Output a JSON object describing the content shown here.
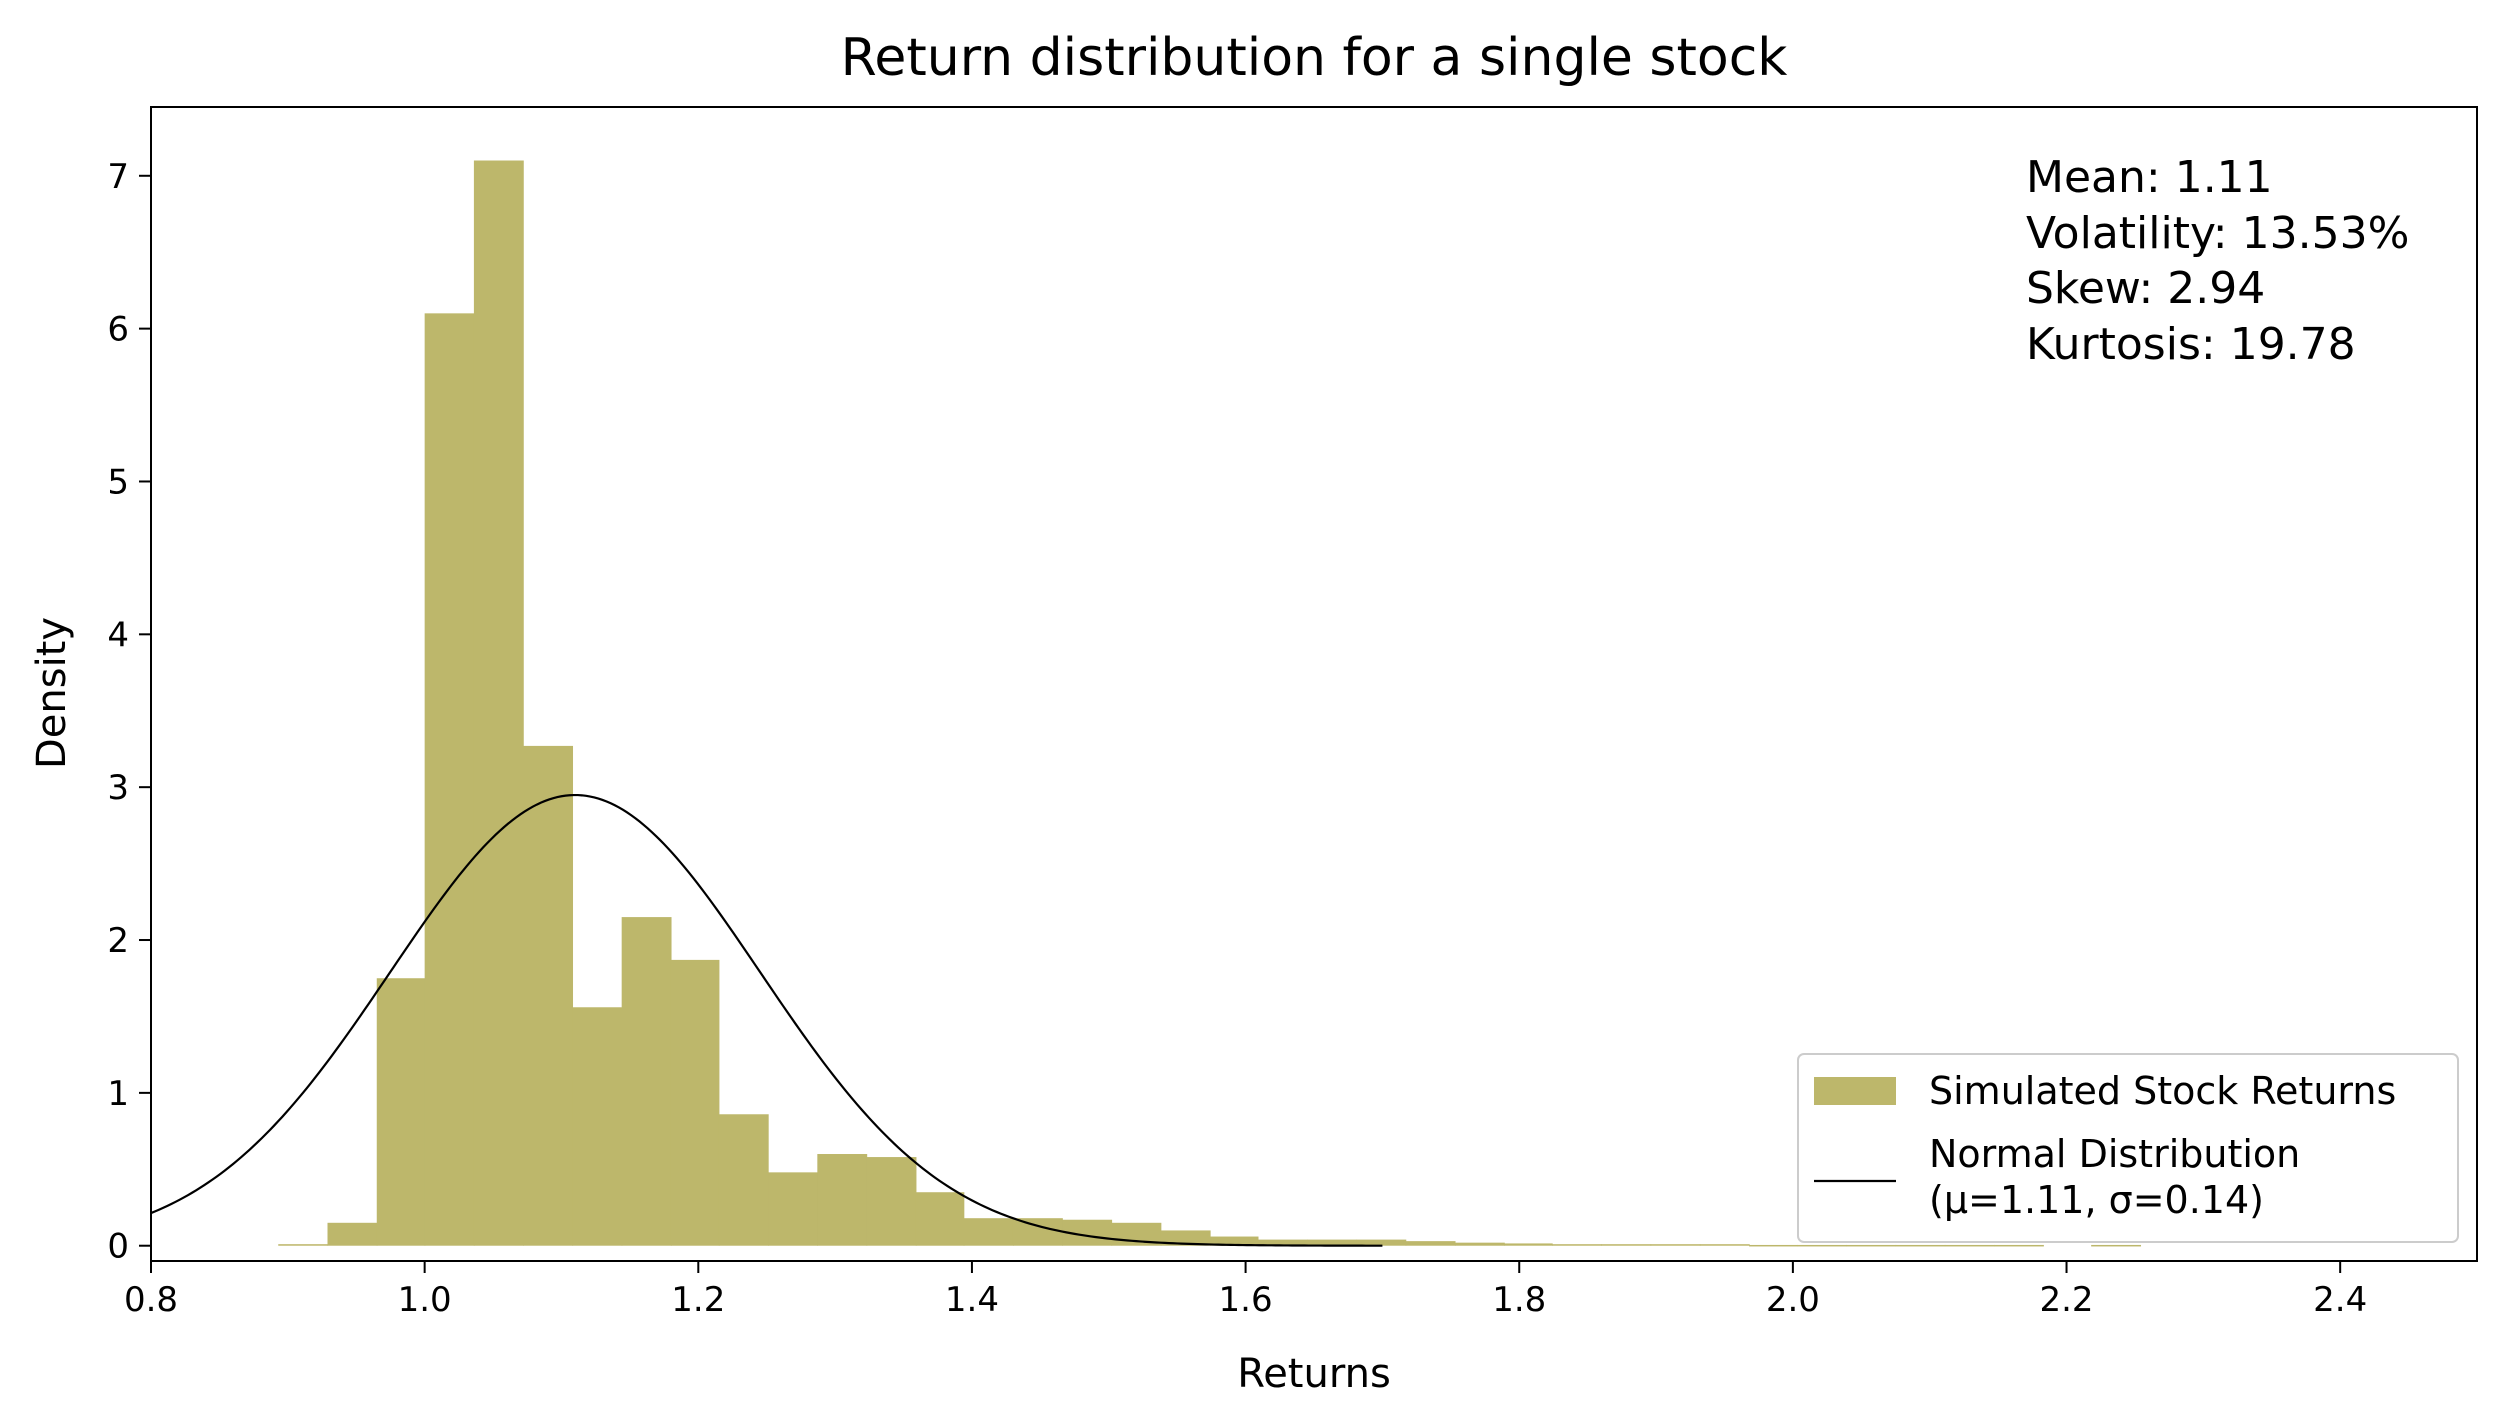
{
  "chart_data": {
    "type": "bar",
    "title": "Return distribution for a single stock",
    "xlabel": "Returns",
    "ylabel": "Density",
    "xlim": [
      0.8,
      2.5
    ],
    "ylim": [
      -0.1,
      7.45
    ],
    "xticks": [
      "0.8",
      "1.0",
      "1.2",
      "1.4",
      "1.6",
      "1.8",
      "2.0",
      "2.2",
      "2.4"
    ],
    "xtick_values": [
      0.8,
      1.0,
      1.2,
      1.4,
      1.6,
      1.8,
      2.0,
      2.2,
      2.4
    ],
    "yticks": [
      "0",
      "1",
      "2",
      "3",
      "4",
      "5",
      "6",
      "7"
    ],
    "ytick_values": [
      0,
      1,
      2,
      3,
      4,
      5,
      6,
      7
    ],
    "grid": false,
    "legend_position": "bottom-right",
    "stats_lines": [
      "Mean: 1.11",
      "Volatility: 13.53%",
      "Skew: 2.94",
      "Kurtosis: 19.78"
    ],
    "histogram": {
      "name": "Simulated Stock Returns",
      "color": "#bdb76b",
      "bins": [
        {
          "x0": 0.893,
          "x1": 0.929,
          "density": 0.01
        },
        {
          "x0": 0.929,
          "x1": 0.965,
          "density": 0.15
        },
        {
          "x0": 0.965,
          "x1": 1.0,
          "density": 1.75
        },
        {
          "x0": 1.0,
          "x1": 1.036,
          "density": 6.1
        },
        {
          "x0": 1.036,
          "x1": 1.072,
          "density": 7.1
        },
        {
          "x0": 1.072,
          "x1": 1.108,
          "density": 3.27
        },
        {
          "x0": 1.108,
          "x1": 1.144,
          "density": 1.56
        },
        {
          "x0": 1.144,
          "x1": 1.18,
          "density": 2.15
        },
        {
          "x0": 1.18,
          "x1": 1.215,
          "density": 1.87
        },
        {
          "x0": 1.215,
          "x1": 1.251,
          "density": 0.86
        },
        {
          "x0": 1.251,
          "x1": 1.287,
          "density": 0.48
        },
        {
          "x0": 1.287,
          "x1": 1.323,
          "density": 0.6
        },
        {
          "x0": 1.323,
          "x1": 1.359,
          "density": 0.58
        },
        {
          "x0": 1.359,
          "x1": 1.394,
          "density": 0.35
        },
        {
          "x0": 1.394,
          "x1": 1.43,
          "density": 0.18
        },
        {
          "x0": 1.43,
          "x1": 1.466,
          "density": 0.18
        },
        {
          "x0": 1.466,
          "x1": 1.502,
          "density": 0.17
        },
        {
          "x0": 1.502,
          "x1": 1.538,
          "density": 0.15
        },
        {
          "x0": 1.538,
          "x1": 1.574,
          "density": 0.1
        },
        {
          "x0": 1.574,
          "x1": 1.609,
          "density": 0.06
        },
        {
          "x0": 1.609,
          "x1": 1.645,
          "density": 0.04
        },
        {
          "x0": 1.645,
          "x1": 1.681,
          "density": 0.04
        },
        {
          "x0": 1.681,
          "x1": 1.717,
          "density": 0.04
        },
        {
          "x0": 1.717,
          "x1": 1.753,
          "density": 0.03
        },
        {
          "x0": 1.753,
          "x1": 1.789,
          "density": 0.02
        },
        {
          "x0": 1.789,
          "x1": 1.824,
          "density": 0.015
        },
        {
          "x0": 1.824,
          "x1": 1.86,
          "density": 0.01
        },
        {
          "x0": 1.86,
          "x1": 1.896,
          "density": 0.01
        },
        {
          "x0": 1.896,
          "x1": 1.932,
          "density": 0.01
        },
        {
          "x0": 1.932,
          "x1": 1.968,
          "density": 0.01
        },
        {
          "x0": 1.968,
          "x1": 2.003,
          "density": 0.005
        },
        {
          "x0": 2.003,
          "x1": 2.039,
          "density": 0.005
        },
        {
          "x0": 2.039,
          "x1": 2.075,
          "density": 0.005
        },
        {
          "x0": 2.075,
          "x1": 2.111,
          "density": 0.005
        },
        {
          "x0": 2.111,
          "x1": 2.147,
          "density": 0.005
        },
        {
          "x0": 2.147,
          "x1": 2.183,
          "density": 0.005
        },
        {
          "x0": 2.183,
          "x1": 2.218,
          "density": 0.0
        },
        {
          "x0": 2.218,
          "x1": 2.254,
          "density": 0.005
        }
      ]
    },
    "normal_curve": {
      "name_line1": "Normal Distribution",
      "name_line2": "(μ=1.11, σ=0.14)",
      "mu": 1.11,
      "sigma": 0.1353,
      "x_range": [
        0.8,
        1.7
      ],
      "color": "#000000"
    }
  }
}
